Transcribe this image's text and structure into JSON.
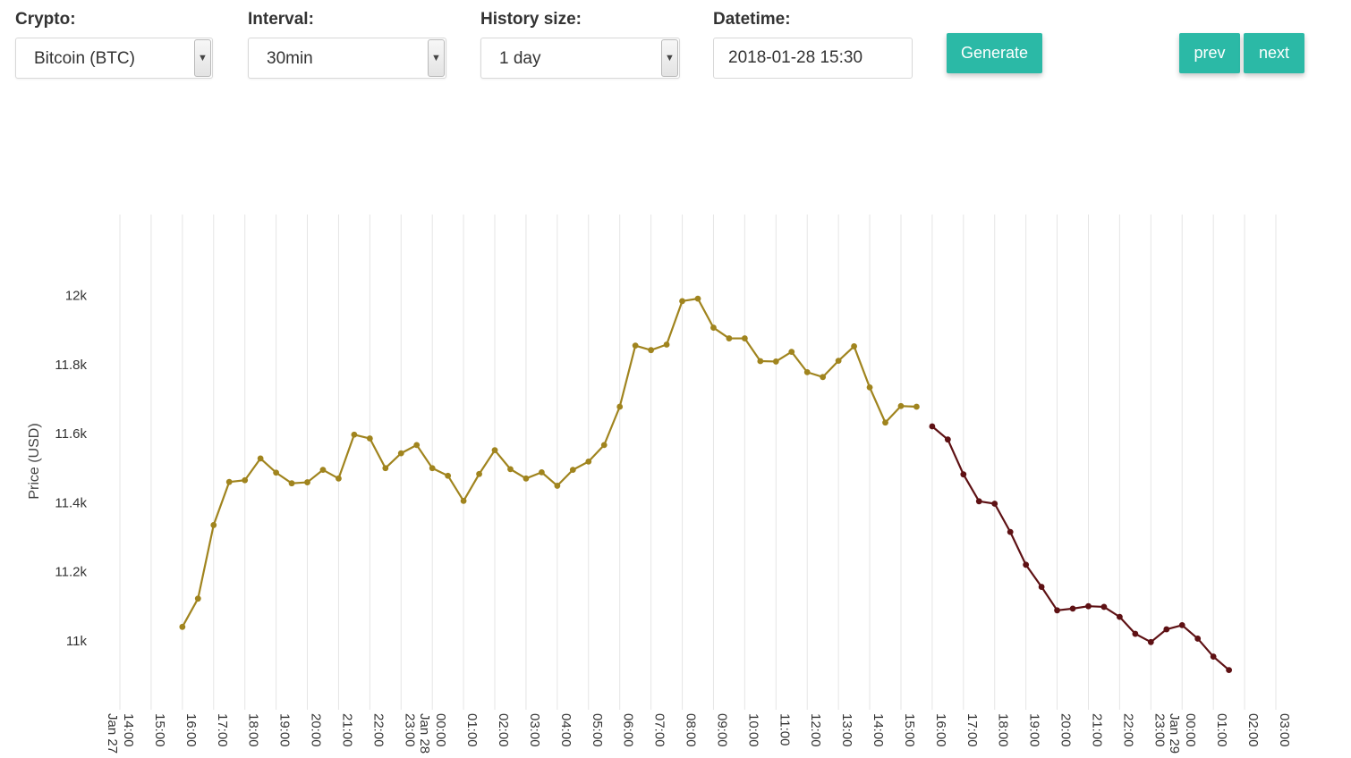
{
  "form": {
    "crypto": {
      "label": "Crypto:",
      "value": "Bitcoin (BTC)"
    },
    "interval": {
      "label": "Interval:",
      "value": "30min"
    },
    "history": {
      "label": "History size:",
      "value": "1 day"
    },
    "datetime": {
      "label": "Datetime:",
      "value": "2018-01-28 15:30"
    },
    "generate_label": "Generate",
    "prev_label": "prev",
    "next_label": "next"
  },
  "colors": {
    "history": "#a0841e",
    "forecast": "#5e1114",
    "grid": "#e5e5e5",
    "button": "#2bb9a6"
  },
  "chart_data": {
    "type": "line",
    "ylabel": "Price (USD)",
    "ylim": [
      10800,
      12240
    ],
    "yticks": [
      11000,
      11200,
      11400,
      11600,
      11800,
      12000
    ],
    "ytick_labels": [
      "11k",
      "11.2k",
      "11.4k",
      "11.6k",
      "11.8k",
      "12k"
    ],
    "xlim": [
      "2018-01-27 14:00",
      "2018-01-29 03:00"
    ],
    "xticks": [
      {
        "t": "2018-01-27 14:00",
        "label": "14:00",
        "date": "Jan 27"
      },
      {
        "t": "2018-01-27 15:00",
        "label": "15:00"
      },
      {
        "t": "2018-01-27 16:00",
        "label": "16:00"
      },
      {
        "t": "2018-01-27 17:00",
        "label": "17:00"
      },
      {
        "t": "2018-01-27 18:00",
        "label": "18:00"
      },
      {
        "t": "2018-01-27 19:00",
        "label": "19:00"
      },
      {
        "t": "2018-01-27 20:00",
        "label": "20:00"
      },
      {
        "t": "2018-01-27 21:00",
        "label": "21:00"
      },
      {
        "t": "2018-01-27 22:00",
        "label": "22:00"
      },
      {
        "t": "2018-01-27 23:00",
        "label": "23:00"
      },
      {
        "t": "2018-01-28 00:00",
        "label": "00:00",
        "date": "Jan 28"
      },
      {
        "t": "2018-01-28 01:00",
        "label": "01:00"
      },
      {
        "t": "2018-01-28 02:00",
        "label": "02:00"
      },
      {
        "t": "2018-01-28 03:00",
        "label": "03:00"
      },
      {
        "t": "2018-01-28 04:00",
        "label": "04:00"
      },
      {
        "t": "2018-01-28 05:00",
        "label": "05:00"
      },
      {
        "t": "2018-01-28 06:00",
        "label": "06:00"
      },
      {
        "t": "2018-01-28 07:00",
        "label": "07:00"
      },
      {
        "t": "2018-01-28 08:00",
        "label": "08:00"
      },
      {
        "t": "2018-01-28 09:00",
        "label": "09:00"
      },
      {
        "t": "2018-01-28 10:00",
        "label": "10:00"
      },
      {
        "t": "2018-01-28 11:00",
        "label": "11:00"
      },
      {
        "t": "2018-01-28 12:00",
        "label": "12:00"
      },
      {
        "t": "2018-01-28 13:00",
        "label": "13:00"
      },
      {
        "t": "2018-01-28 14:00",
        "label": "14:00"
      },
      {
        "t": "2018-01-28 15:00",
        "label": "15:00"
      },
      {
        "t": "2018-01-28 16:00",
        "label": "16:00"
      },
      {
        "t": "2018-01-28 17:00",
        "label": "17:00"
      },
      {
        "t": "2018-01-28 18:00",
        "label": "18:00"
      },
      {
        "t": "2018-01-28 19:00",
        "label": "19:00"
      },
      {
        "t": "2018-01-28 20:00",
        "label": "20:00"
      },
      {
        "t": "2018-01-28 21:00",
        "label": "21:00"
      },
      {
        "t": "2018-01-28 22:00",
        "label": "22:00"
      },
      {
        "t": "2018-01-28 23:00",
        "label": "23:00"
      },
      {
        "t": "2018-01-29 00:00",
        "label": "00:00",
        "date": "Jan 29"
      },
      {
        "t": "2018-01-29 01:00",
        "label": "01:00"
      },
      {
        "t": "2018-01-29 02:00",
        "label": "02:00"
      },
      {
        "t": "2018-01-29 03:00",
        "label": "03:00"
      }
    ],
    "grid": true,
    "series": [
      {
        "color": "#a0841e",
        "points": [
          [
            "2018-01-27 16:00",
            11040
          ],
          [
            "2018-01-27 16:30",
            11122
          ],
          [
            "2018-01-27 17:00",
            11335
          ],
          [
            "2018-01-27 17:30",
            11460
          ],
          [
            "2018-01-27 18:00",
            11465
          ],
          [
            "2018-01-27 18:30",
            11528
          ],
          [
            "2018-01-27 19:00",
            11487
          ],
          [
            "2018-01-27 19:30",
            11456
          ],
          [
            "2018-01-27 20:00",
            11459
          ],
          [
            "2018-01-27 20:30",
            11495
          ],
          [
            "2018-01-27 21:00",
            11470
          ],
          [
            "2018-01-27 21:30",
            11597
          ],
          [
            "2018-01-27 22:00",
            11586
          ],
          [
            "2018-01-27 22:30",
            11500
          ],
          [
            "2018-01-27 23:00",
            11543
          ],
          [
            "2018-01-27 23:30",
            11567
          ],
          [
            "2018-01-28 00:00",
            11500
          ],
          [
            "2018-01-28 00:30",
            11478
          ],
          [
            "2018-01-28 01:00",
            11405
          ],
          [
            "2018-01-28 01:30",
            11483
          ],
          [
            "2018-01-28 02:00",
            11552
          ],
          [
            "2018-01-28 02:30",
            11497
          ],
          [
            "2018-01-28 03:00",
            11470
          ],
          [
            "2018-01-28 03:30",
            11488
          ],
          [
            "2018-01-28 04:00",
            11449
          ],
          [
            "2018-01-28 04:30",
            11495
          ],
          [
            "2018-01-28 05:00",
            11519
          ],
          [
            "2018-01-28 05:30",
            11567
          ],
          [
            "2018-01-28 06:00",
            11678
          ],
          [
            "2018-01-28 06:30",
            11855
          ],
          [
            "2018-01-28 07:00",
            11842
          ],
          [
            "2018-01-28 07:30",
            11858
          ],
          [
            "2018-01-28 08:00",
            11984
          ],
          [
            "2018-01-28 08:30",
            11991
          ],
          [
            "2018-01-28 09:00",
            11907
          ],
          [
            "2018-01-28 09:30",
            11876
          ],
          [
            "2018-01-28 10:00",
            11876
          ],
          [
            "2018-01-28 10:30",
            11810
          ],
          [
            "2018-01-28 11:00",
            11809
          ],
          [
            "2018-01-28 11:30",
            11837
          ],
          [
            "2018-01-28 12:00",
            11778
          ],
          [
            "2018-01-28 12:30",
            11764
          ],
          [
            "2018-01-28 13:00",
            11811
          ],
          [
            "2018-01-28 13:30",
            11853
          ],
          [
            "2018-01-28 14:00",
            11734
          ],
          [
            "2018-01-28 14:30",
            11632
          ],
          [
            "2018-01-28 15:00",
            11680
          ],
          [
            "2018-01-28 15:30",
            11678
          ]
        ]
      },
      {
        "color": "#5e1114",
        "points": [
          [
            "2018-01-28 16:00",
            11621
          ],
          [
            "2018-01-28 16:30",
            11583
          ],
          [
            "2018-01-28 17:00",
            11482
          ],
          [
            "2018-01-28 17:30",
            11404
          ],
          [
            "2018-01-28 18:00",
            11397
          ],
          [
            "2018-01-28 18:30",
            11315
          ],
          [
            "2018-01-28 19:00",
            11220
          ],
          [
            "2018-01-28 19:30",
            11156
          ],
          [
            "2018-01-28 20:00",
            11088
          ],
          [
            "2018-01-28 20:30",
            11093
          ],
          [
            "2018-01-28 21:00",
            11100
          ],
          [
            "2018-01-28 21:30",
            11098
          ],
          [
            "2018-01-28 22:00",
            11069
          ],
          [
            "2018-01-28 22:30",
            11020
          ],
          [
            "2018-01-28 23:00",
            10996
          ],
          [
            "2018-01-28 23:30",
            11033
          ],
          [
            "2018-01-29 00:00",
            11045
          ],
          [
            "2018-01-29 00:30",
            11006
          ],
          [
            "2018-01-29 01:00",
            10954
          ],
          [
            "2018-01-29 01:30",
            10915
          ]
        ]
      }
    ]
  }
}
